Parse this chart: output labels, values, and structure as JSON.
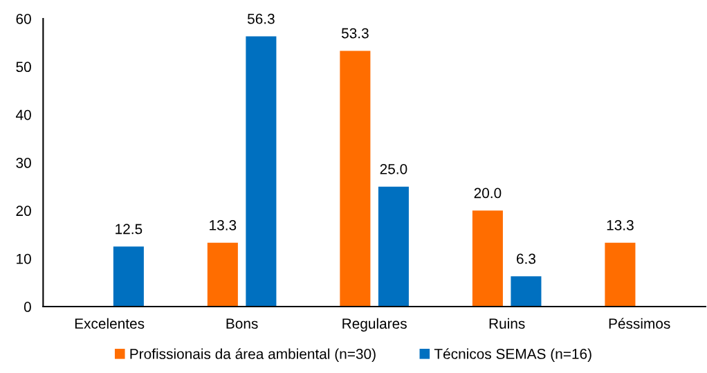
{
  "chart_data": {
    "type": "bar",
    "categories": [
      "Excelentes",
      "Bons",
      "Regulares",
      "Ruins",
      "Péssimos"
    ],
    "series": [
      {
        "name": "Profissionais da área ambiental (n=30)",
        "color": "#ff6d00",
        "values": [
          null,
          13.3,
          53.3,
          20.0,
          13.3
        ],
        "value_labels": [
          null,
          "13.3",
          "53.3",
          "20.0",
          "13.3"
        ]
      },
      {
        "name": "Técnicos SEMAS (n=16)",
        "color": "#0070c0",
        "values": [
          12.5,
          56.3,
          25.0,
          6.3,
          null
        ],
        "value_labels": [
          "12.5",
          "56.3",
          "25.0",
          "6.3",
          null
        ]
      }
    ],
    "ylim": [
      0,
      60
    ],
    "yticks": [
      0,
      10,
      20,
      30,
      40,
      50,
      60
    ],
    "grid": false,
    "legend": "bottom"
  }
}
